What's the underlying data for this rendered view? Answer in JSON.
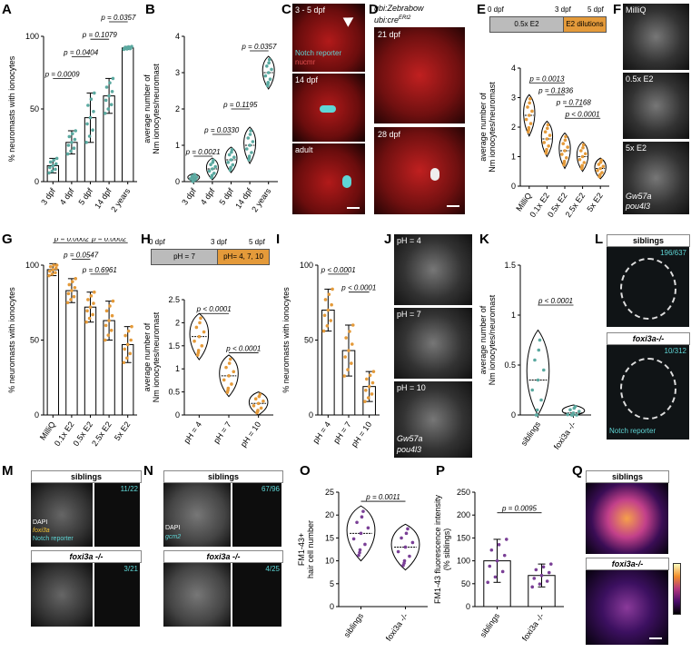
{
  "labels": {
    "A": "A",
    "B": "B",
    "C": "C",
    "D": "D",
    "E": "E",
    "F": "F",
    "G": "G",
    "H": "H",
    "I": "I",
    "J": "J",
    "K": "K",
    "L": "L",
    "M": "M",
    "N": "N",
    "O": "O",
    "P": "P",
    "Q": "Q"
  },
  "colors": {
    "teal": "#5ba9a0",
    "orange": "#e49a3a",
    "purple": "#7a3f96",
    "cyan": "#5fd6d6",
    "yellow": "#f1c232",
    "red": "#c0392b"
  },
  "micro": {
    "C": {
      "t1": "3 - 5 dpf",
      "t1b": "Notch reporter",
      "t1c": "nucmr",
      "t2": "14 dpf",
      "t3": "adult"
    },
    "D": {
      "title1": "ubi:Zebrabow",
      "title2": "ubi:cre",
      "sup": "ERt2",
      "t1": "21 dpf",
      "t2": "28 dpf"
    },
    "F": {
      "t1": "MilliQ",
      "t2": "0.5x E2",
      "t3": "5x E2",
      "g1": "Gw57a",
      "g2": "pou4l3"
    },
    "J": {
      "t1": "pH = 4",
      "t2": "pH = 7",
      "t3": "pH = 10",
      "g1": "Gw57a",
      "g2": "pou4l3"
    },
    "L": {
      "h1": "siblings",
      "c1": "196/637",
      "h2": "foxi3a-/-",
      "c2": "10/312",
      "leg": "Notch reporter"
    },
    "M": {
      "h1": "siblings",
      "c1": "11/22",
      "h2": "foxi3a -/-",
      "c2": "3/21",
      "leg1": "DAPI",
      "leg2": "foxi3a",
      "leg3": "Notch reporter"
    },
    "N": {
      "h1": "siblings",
      "c1": "67/96",
      "h2": "foxi3a -/-",
      "c2": "4/25",
      "leg1": "DAPI",
      "leg2": "gcm2"
    },
    "Q": {
      "h1": "siblings",
      "h2": "foxi3a-/-"
    }
  },
  "timelines": {
    "E": {
      "t0": "0 dpf",
      "t3": "3 dpf",
      "t5": "5 dpf",
      "seg1": "0.5x E2",
      "seg2": "E2 dilutions"
    },
    "H": {
      "t0": "0 dpf",
      "t3": "3 dpf",
      "t5": "5 dpf",
      "seg1": "pH = 7",
      "seg2": "pH= 4, 7, 10"
    }
  },
  "chart_data": [
    {
      "id": "A",
      "type": "bar",
      "ylabel": "% neuromasts with ionocytes",
      "categories": [
        "3 dpf",
        "4 dpf",
        "5 dpf",
        "14 dpf",
        "2 years"
      ],
      "values": [
        11,
        27,
        44,
        59,
        92
      ],
      "errors": [
        5,
        8,
        17,
        12,
        1
      ],
      "ylim": [
        0,
        100
      ],
      "yticks": [
        0,
        50,
        100
      ],
      "color": "#5ba9a0",
      "pvals": [
        {
          "text": "p = 0.0009",
          "a": 0,
          "b": 1,
          "y": 71
        },
        {
          "text": "p = 0.0404",
          "a": 1,
          "b": 2,
          "y": 86
        },
        {
          "text": "p = 0.1079",
          "a": 2,
          "b": 3,
          "y": 98
        },
        {
          "text": "p = 0.0357",
          "a": 3,
          "b": 4,
          "y": 110
        }
      ]
    },
    {
      "id": "B",
      "type": "violin",
      "ylabel": "average number of\nNm ionocytes/neuromast",
      "categories": [
        "3 dpf",
        "4 dpf",
        "5 dpf",
        "14 dpf",
        "2 years"
      ],
      "medians": [
        0.1,
        0.35,
        0.6,
        1.0,
        3.0
      ],
      "spreads": [
        0.12,
        0.3,
        0.35,
        0.5,
        0.45
      ],
      "ylim": [
        0,
        4
      ],
      "yticks": [
        0,
        1,
        2,
        3,
        4
      ],
      "color": "#5ba9a0",
      "pvals": [
        {
          "text": "p = 0.0021",
          "a": 0,
          "b": 1,
          "y": 0.7
        },
        {
          "text": "p = 0.0330",
          "a": 1,
          "b": 2,
          "y": 1.3
        },
        {
          "text": "p = 0.1195",
          "a": 2,
          "b": 3,
          "y": 2.0
        },
        {
          "text": "p = 0.0357",
          "a": 3,
          "b": 4,
          "y": 3.6
        }
      ]
    },
    {
      "id": "E",
      "type": "violin",
      "ylabel": "average number of\nNm ionocytes/neuromast",
      "categories": [
        "MilliQ",
        "0.1x E2",
        "0.5x E2",
        "2.5x E2",
        "5x E2"
      ],
      "medians": [
        2.4,
        1.6,
        1.2,
        1.0,
        0.6
      ],
      "spreads": [
        0.7,
        0.6,
        0.6,
        0.5,
        0.35
      ],
      "ylim": [
        0,
        4
      ],
      "yticks": [
        0,
        1,
        2,
        3,
        4
      ],
      "color": "#e49a3a",
      "pvals": [
        {
          "text": "p = 0.0013",
          "a": 0,
          "b": 2,
          "y": 3.5
        },
        {
          "text": "p = 0.1836",
          "a": 1,
          "b": 2,
          "y": 3.1
        },
        {
          "text": "p = 0.7168",
          "a": 2,
          "b": 3,
          "y": 2.7
        },
        {
          "text": "p < 0.0001",
          "a": 2,
          "b": 4,
          "y": 2.3
        }
      ]
    },
    {
      "id": "G",
      "type": "bar",
      "ylabel": "% neuromasts with ionocytes",
      "categories": [
        "MilliQ",
        "0.1x E2",
        "0.5x E2",
        "2.5x E2",
        "5x E2"
      ],
      "values": [
        97,
        83,
        72,
        63,
        47
      ],
      "errors": [
        4,
        8,
        10,
        13,
        12
      ],
      "ylim": [
        0,
        100
      ],
      "yticks": [
        0,
        50,
        100
      ],
      "color": "#e49a3a",
      "pvals": [
        {
          "text": "p = 0.0002",
          "a": 0,
          "b": 2,
          "y": 115
        },
        {
          "text": "p = 0.0002",
          "a": 2,
          "b": 4,
          "y": 115
        },
        {
          "text": "p = 0.0547",
          "a": 1,
          "b": 2,
          "y": 104
        },
        {
          "text": "p = 0.6961",
          "a": 2,
          "b": 3,
          "y": 94
        }
      ]
    },
    {
      "id": "H",
      "type": "violin",
      "ylabel": "average number of\nNm ionocytes/neuromast",
      "categories": [
        "pH = 4",
        "pH = 7",
        "pH = 10"
      ],
      "medians": [
        1.7,
        0.85,
        0.25
      ],
      "spreads": [
        0.5,
        0.45,
        0.25
      ],
      "ylim": [
        0,
        2.5
      ],
      "yticks": [
        0,
        0.5,
        1,
        1.5,
        2,
        2.5
      ],
      "color": "#e49a3a",
      "pvals": [
        {
          "text": "p < 0.0001",
          "a": 0,
          "b": 1,
          "y": 2.2
        },
        {
          "text": "p < 0.0001",
          "a": 1,
          "b": 2,
          "y": 1.35
        }
      ]
    },
    {
      "id": "I",
      "type": "bar",
      "ylabel": "% neuromasts with ionocytes",
      "categories": [
        "pH = 4",
        "pH = 7",
        "pH = 10"
      ],
      "values": [
        70,
        43,
        19
      ],
      "errors": [
        14,
        17,
        10
      ],
      "ylim": [
        0,
        100
      ],
      "yticks": [
        0,
        50,
        100
      ],
      "color": "#e49a3a",
      "pvals": [
        {
          "text": "p < 0.0001",
          "a": 0,
          "b": 1,
          "y": 94
        },
        {
          "text": "p < 0.0001",
          "a": 1,
          "b": 2,
          "y": 82
        }
      ]
    },
    {
      "id": "K",
      "type": "violin",
      "ylabel": "average number of\nNm ionocytes/neuromast",
      "categories": [
        "siblings",
        "foxi3a -/-"
      ],
      "medians": [
        0.35,
        0.02
      ],
      "spreads": [
        0.5,
        0.08
      ],
      "ylim": [
        0,
        1.5
      ],
      "yticks": [
        0,
        0.5,
        1,
        1.5
      ],
      "color": "#5ba9a0",
      "pvals": [
        {
          "text": "p < 0.0001",
          "a": 0,
          "b": 1,
          "y": 1.1
        }
      ]
    },
    {
      "id": "O",
      "type": "violin",
      "ylabel": "FM1-43+\nhair cell number",
      "categories": [
        "siblings",
        "foxi3a -/-"
      ],
      "medians": [
        16,
        13
      ],
      "spreads": [
        6,
        5
      ],
      "ylim": [
        0,
        25
      ],
      "yticks": [
        0,
        5,
        10,
        15,
        20,
        25
      ],
      "color": "#7a3f96",
      "pvals": [
        {
          "text": "p = 0.0011",
          "a": 0,
          "b": 1,
          "y": 23
        }
      ]
    },
    {
      "id": "P",
      "type": "bar",
      "ylabel": "FM1-43 fluorescence intensity\n(% siblings)",
      "categories": [
        "siblings",
        "foxi3a -/-"
      ],
      "values": [
        100,
        68
      ],
      "errors": [
        47,
        25
      ],
      "ylim": [
        0,
        250
      ],
      "yticks": [
        0,
        50,
        100,
        150,
        200,
        250
      ],
      "color": "#7a3f96",
      "pvals": [
        {
          "text": "p = 0.0095",
          "a": 0,
          "b": 1,
          "y": 205
        }
      ]
    }
  ]
}
